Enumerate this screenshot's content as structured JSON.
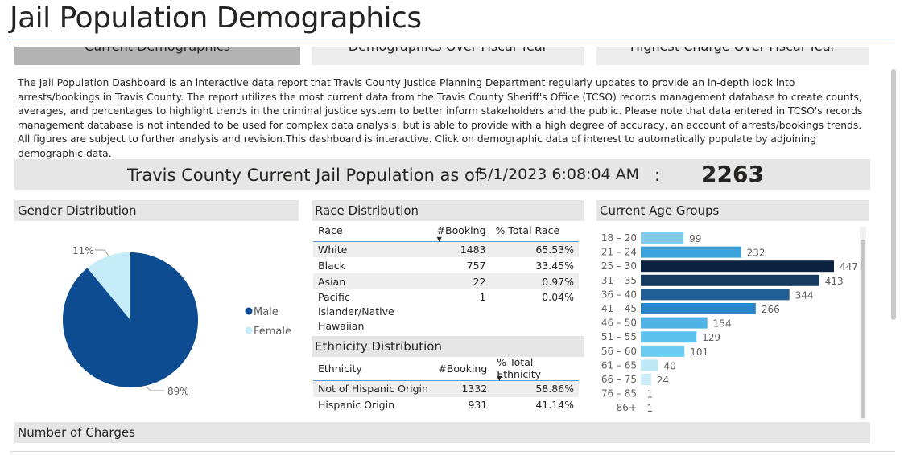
{
  "page": {
    "title": "Jail Population Demographics"
  },
  "tabs": [
    {
      "label": "Current Demographics",
      "active": true
    },
    {
      "label": "Demographics Over Fiscal Year",
      "active": false
    },
    {
      "label": "Highest Charge Over Fiscal Year",
      "active": false
    }
  ],
  "intro": {
    "text": "The Jail Population Dashboard is an interactive data report that Travis County Justice Planning Department regularly updates to provide an in-depth look into arrests/bookings in Travis County. The report utilizes the most current data from the Travis County Sheriff's Office (TCSO) records management database to create counts, averages, and percentages to highlight trends in the criminal justice system to better inform stakeholders and the public. Please note that data entered in TCSO's records management database is not intended to be used for complex data analysis, but is able to provide with a high degree of accuracy, an account of arrests/bookings trends. All figures are subject to further analysis and revision.This dashboard is interactive. Click on demographic data of interest to automatically populate by adjoining demographic data."
  },
  "banner": {
    "label": "Travis County Current Jail Population as of",
    "date": "5/1/2023 6:08:04 AM",
    "separator": ":",
    "count": "2263"
  },
  "gender": {
    "title": "Gender Distribution",
    "colors": {
      "Male": "#0e4c92",
      "Female": "#c5ecf8"
    },
    "legend": [
      {
        "label": "Male",
        "color": "#0e4c92"
      },
      {
        "label": "Female",
        "color": "#c5ecf8"
      }
    ],
    "labels": {
      "male_pct": "89%",
      "female_pct": "11%"
    }
  },
  "race": {
    "title": "Race Distribution",
    "columns": [
      "Race",
      "#Booking",
      "% Total Race"
    ],
    "rows": [
      [
        "White",
        "1483",
        "65.53%"
      ],
      [
        "Black",
        "757",
        "33.45%"
      ],
      [
        "Asian",
        "22",
        "0.97%"
      ],
      [
        "Pacific Islander/Native Hawaiian",
        "1",
        "0.04%"
      ]
    ]
  },
  "ethnicity": {
    "title": "Ethnicity Distribution",
    "columns": [
      "Ethnicity",
      "#Booking",
      "% Total Ethnicity"
    ],
    "rows": [
      [
        "Not of Hispanic Origin",
        "1332",
        "58.86%"
      ],
      [
        "Hispanic Origin",
        "931",
        "41.14%"
      ]
    ]
  },
  "age": {
    "title": "Current Age Groups"
  },
  "charges": {
    "title": "Number of Charges"
  },
  "chart_data": [
    {
      "type": "pie",
      "title": "Gender Distribution",
      "categories": [
        "Male",
        "Female"
      ],
      "values": [
        89,
        11
      ],
      "colors": [
        "#0e4c92",
        "#c5ecf8"
      ],
      "legend": "right"
    },
    {
      "type": "bar",
      "orientation": "horizontal",
      "title": "Current Age Groups",
      "categories": [
        "18 – 20",
        "21 – 24",
        "25 – 30",
        "31 – 35",
        "36 – 40",
        "41 – 45",
        "46 – 50",
        "51 – 55",
        "56 – 60",
        "61 – 65",
        "66 – 75",
        "76 – 85",
        "86+"
      ],
      "values": [
        99,
        232,
        447,
        413,
        344,
        266,
        154,
        129,
        101,
        40,
        24,
        1,
        1
      ],
      "colors": [
        "#7fcdea",
        "#3ba3dc",
        "#0c2340",
        "#163a5f",
        "#1f5f96",
        "#2a86c9",
        "#4fb3e6",
        "#5ec2ee",
        "#6ccbf0",
        "#bfe8f6",
        "#cdeef8",
        "#e4f5fb",
        "#e4f5fb"
      ],
      "xlim": [
        0,
        447
      ]
    }
  ]
}
